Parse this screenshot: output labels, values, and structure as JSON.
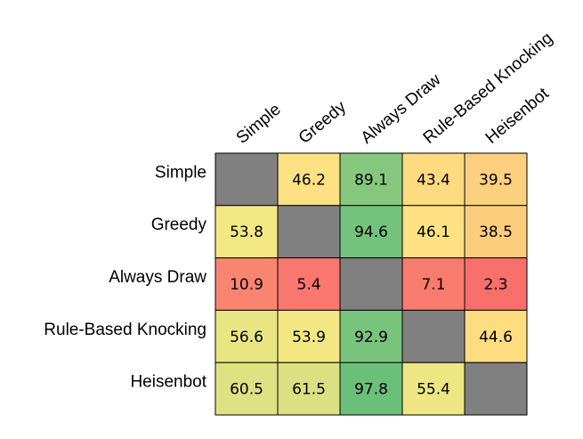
{
  "chart_data": {
    "type": "heatmap",
    "rows": [
      "Simple",
      "Greedy",
      "Always Draw",
      "Rule-Based Knocking",
      "Heisenbot"
    ],
    "columns": [
      "Simple",
      "Greedy",
      "Always Draw",
      "Rule-Based Knocking",
      "Heisenbot"
    ],
    "values": [
      [
        null,
        46.2,
        89.1,
        43.4,
        39.5
      ],
      [
        53.8,
        null,
        94.6,
        46.1,
        38.5
      ],
      [
        10.9,
        5.4,
        null,
        7.1,
        2.3
      ],
      [
        56.6,
        53.9,
        92.9,
        null,
        44.6
      ],
      [
        60.5,
        61.5,
        97.8,
        55.4,
        null
      ]
    ],
    "value_labels": [
      [
        "",
        "46.2",
        "89.1",
        "43.4",
        "39.5"
      ],
      [
        "53.8",
        "",
        "94.6",
        "46.1",
        "38.5"
      ],
      [
        "10.9",
        "5.4",
        "",
        "7.1",
        "2.3"
      ],
      [
        "56.6",
        "53.9",
        "92.9",
        "",
        "44.6"
      ],
      [
        "60.5",
        "61.5",
        "97.8",
        "55.4",
        ""
      ]
    ],
    "color_scale": {
      "low": "#f8696b",
      "mid": "#ffeb84",
      "high": "#63be7b",
      "diagonal": "#808080"
    },
    "colors": {
      "low": "#f8696b",
      "low_mid": "#fbaa77",
      "mid": "#ffeb84",
      "high": "#63be7b",
      "diagonal": "#808080",
      "grid": "#000000"
    },
    "legend": "none",
    "title": "",
    "xlabel": "",
    "ylabel": ""
  }
}
